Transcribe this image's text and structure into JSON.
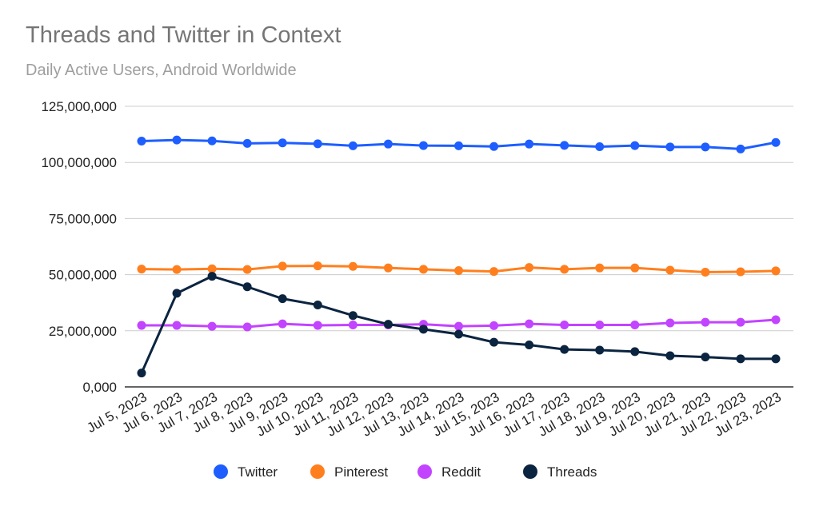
{
  "chart_data": {
    "type": "line",
    "title": "Threads and Twitter in Context",
    "subtitle": "Daily Active Users, Android Worldwide",
    "xlabel": "",
    "ylabel": "",
    "ylim": [
      0,
      125000000
    ],
    "yticks": [
      0,
      25000000,
      50000000,
      75000000,
      100000000,
      125000000
    ],
    "ytick_labels": [
      "0,000",
      "25,000,000",
      "50,000,000",
      "75,000,000",
      "100,000,000",
      "125,000,000"
    ],
    "grid": true,
    "legend_position": "bottom",
    "categories": [
      "Jul 5, 2023",
      "Jul 6, 2023",
      "Jul 7, 2023",
      "Jul 8, 2023",
      "Jul 9, 2023",
      "Jul 10, 2023",
      "Jul 11, 2023",
      "Jul 12, 2023",
      "Jul 13, 2023",
      "Jul 14, 2023",
      "Jul 15, 2023",
      "Jul 16, 2023",
      "Jul 17, 2023",
      "Jul 18, 2023",
      "Jul 19, 2023",
      "Jul 20, 2023",
      "Jul 21, 2023",
      "Jul 22, 2023",
      "Jul 23, 2023"
    ],
    "series": [
      {
        "name": "Twitter",
        "color": "#1e5eff",
        "values": [
          109500000,
          110000000,
          109600000,
          108500000,
          108700000,
          108300000,
          107400000,
          108200000,
          107500000,
          107400000,
          107100000,
          108200000,
          107600000,
          107000000,
          107500000,
          106900000,
          106900000,
          106000000,
          108900000
        ]
      },
      {
        "name": "Pinterest",
        "color": "#ff7f1e",
        "values": [
          52500000,
          52300000,
          52600000,
          52300000,
          53800000,
          53900000,
          53700000,
          53000000,
          52400000,
          51800000,
          51400000,
          53200000,
          52400000,
          53000000,
          53000000,
          52000000,
          51100000,
          51300000,
          51700000
        ]
      },
      {
        "name": "Reddit",
        "color": "#c244ff",
        "values": [
          27400000,
          27400000,
          27000000,
          26700000,
          28100000,
          27400000,
          27600000,
          27600000,
          27900000,
          27000000,
          27300000,
          28100000,
          27600000,
          27600000,
          27600000,
          28500000,
          28800000,
          28800000,
          29900000
        ]
      },
      {
        "name": "Threads",
        "color": "#0b2440",
        "values": [
          6200000,
          41700000,
          49300000,
          44600000,
          39300000,
          36500000,
          31800000,
          27900000,
          25700000,
          23500000,
          19900000,
          18700000,
          16700000,
          16400000,
          15700000,
          13900000,
          13300000,
          12500000,
          12500000
        ]
      }
    ]
  }
}
